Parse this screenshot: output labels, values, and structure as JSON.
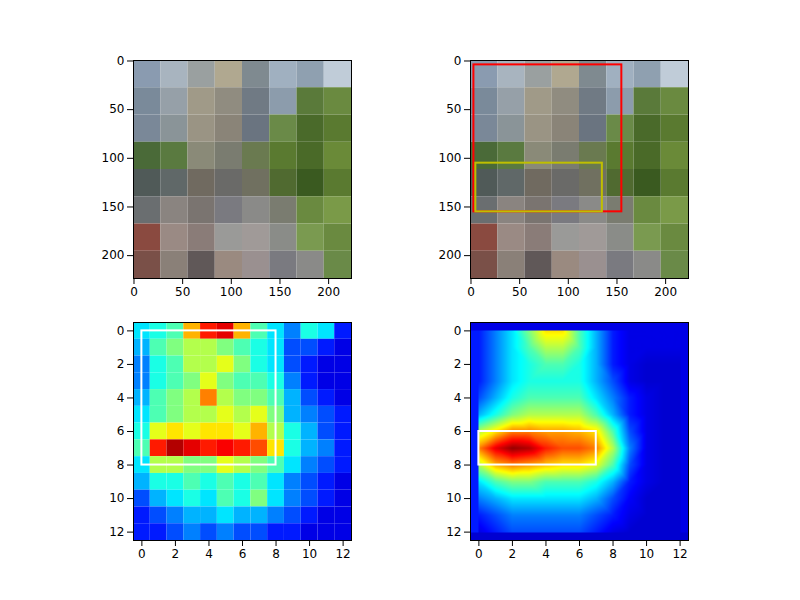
{
  "chart_data": [
    {
      "type": "image",
      "xlim": [
        -0.5,
        223.5
      ],
      "ylim": [
        223.5,
        -0.5
      ],
      "xticks": [
        0,
        50,
        100,
        150,
        200
      ],
      "yticks": [
        0,
        50,
        100,
        150,
        200
      ],
      "cells": [
        [
          "#8a9bb0",
          "#a8b4bf",
          "#9aa0a0",
          "#b0a890",
          "#7f8a90",
          "#a0b0c0",
          "#8fa0b0",
          "#c0ccd8"
        ],
        [
          "#7a8a9a",
          "#96a0a8",
          "#a09a88",
          "#908c80",
          "#707a84",
          "#8c9cac",
          "#5a7a3a",
          "#6a8a40"
        ],
        [
          "#7a8898",
          "#8a9498",
          "#9a9484",
          "#8a8478",
          "#6a7480",
          "#6a8a48",
          "#4a6a2a",
          "#5a7a30"
        ],
        [
          "#4a6a38",
          "#5a7a40",
          "#8a8a78",
          "#7a7c70",
          "#6a7a50",
          "#5a7a30",
          "#4a6a28",
          "#6a8a38"
        ],
        [
          "#505a58",
          "#606868",
          "#706a60",
          "#6a6a68",
          "#707060",
          "#506a30",
          "#3a5a20",
          "#5a7a30"
        ],
        [
          "#6a6e70",
          "#8a8480",
          "#7a7470",
          "#7a7a80",
          "#8a8a88",
          "#7a7c70",
          "#6a8a40",
          "#7a9a48"
        ],
        [
          "#8a4a40",
          "#9a8a84",
          "#8a7c78",
          "#9a9a98",
          "#a09a98",
          "#8a8c88",
          "#7a9a50",
          "#6a8a40"
        ],
        [
          "#7a5048",
          "#8a8078",
          "#605858",
          "#9a8a80",
          "#9a9090",
          "#7a7a80",
          "#8a8a88",
          "#6a8a48"
        ]
      ]
    },
    {
      "type": "image",
      "xlim": [
        -0.5,
        223.5
      ],
      "ylim": [
        223.5,
        -0.5
      ],
      "xticks": [
        0,
        50,
        100,
        150,
        200
      ],
      "yticks": [
        0,
        50,
        100,
        150,
        200
      ],
      "cells": [
        [
          "#8a9bb0",
          "#a8b4bf",
          "#9aa0a0",
          "#b0a890",
          "#7f8a90",
          "#a0b0c0",
          "#8fa0b0",
          "#c0ccd8"
        ],
        [
          "#7a8a9a",
          "#96a0a8",
          "#a09a88",
          "#908c80",
          "#707a84",
          "#8c9cac",
          "#5a7a3a",
          "#6a8a40"
        ],
        [
          "#7a8898",
          "#8a9498",
          "#9a9484",
          "#8a8478",
          "#6a7480",
          "#6a8a48",
          "#4a6a2a",
          "#5a7a30"
        ],
        [
          "#4a6a38",
          "#5a7a40",
          "#8a8a78",
          "#7a7c70",
          "#6a7a50",
          "#5a7a30",
          "#4a6a28",
          "#6a8a38"
        ],
        [
          "#505a58",
          "#606868",
          "#706a60",
          "#6a6a68",
          "#707060",
          "#506a30",
          "#3a5a20",
          "#5a7a30"
        ],
        [
          "#6a6e70",
          "#8a8480",
          "#7a7470",
          "#7a7a80",
          "#8a8a88",
          "#7a7c70",
          "#6a8a40",
          "#7a9a48"
        ],
        [
          "#8a4a40",
          "#9a8a84",
          "#8a7c78",
          "#9a9a98",
          "#a09a98",
          "#8a8c88",
          "#7a9a50",
          "#6a8a40"
        ],
        [
          "#7a5048",
          "#8a8078",
          "#605858",
          "#9a8a80",
          "#9a9090",
          "#7a7a80",
          "#8a8a88",
          "#6a8a48"
        ]
      ],
      "boxes": [
        {
          "x0": 3,
          "y0": 4,
          "x1": 155,
          "y1": 155,
          "color": "#ff0000"
        },
        {
          "x0": 5,
          "y0": 105,
          "x1": 135,
          "y1": 155,
          "color": "#bfbf00"
        }
      ]
    },
    {
      "type": "heatmap",
      "xlim": [
        -0.5,
        12.5
      ],
      "ylim": [
        12.5,
        -0.5
      ],
      "xticks": [
        0,
        2,
        4,
        6,
        8,
        10,
        12
      ],
      "yticks": [
        0,
        2,
        4,
        6,
        8,
        10,
        12
      ],
      "clim": [
        0,
        1
      ],
      "cells": [
        [
          0.35,
          0.4,
          0.45,
          0.7,
          0.85,
          0.9,
          0.7,
          0.45,
          0.35,
          0.25,
          0.4,
          0.35,
          0.15
        ],
        [
          0.3,
          0.45,
          0.5,
          0.55,
          0.55,
          0.5,
          0.45,
          0.4,
          0.35,
          0.2,
          0.2,
          0.15,
          0.1
        ],
        [
          0.25,
          0.4,
          0.45,
          0.55,
          0.55,
          0.6,
          0.5,
          0.4,
          0.35,
          0.2,
          0.15,
          0.1,
          0.1
        ],
        [
          0.25,
          0.4,
          0.45,
          0.5,
          0.6,
          0.5,
          0.45,
          0.45,
          0.4,
          0.25,
          0.15,
          0.1,
          0.1
        ],
        [
          0.3,
          0.45,
          0.5,
          0.55,
          0.75,
          0.55,
          0.5,
          0.5,
          0.45,
          0.3,
          0.2,
          0.15,
          0.1
        ],
        [
          0.35,
          0.45,
          0.5,
          0.55,
          0.55,
          0.6,
          0.55,
          0.6,
          0.5,
          0.3,
          0.25,
          0.2,
          0.15
        ],
        [
          0.4,
          0.6,
          0.65,
          0.6,
          0.65,
          0.65,
          0.6,
          0.7,
          0.55,
          0.4,
          0.3,
          0.2,
          0.15
        ],
        [
          0.45,
          0.85,
          0.95,
          0.9,
          0.85,
          0.88,
          0.85,
          0.8,
          0.65,
          0.4,
          0.3,
          0.25,
          0.15
        ],
        [
          0.35,
          0.55,
          0.55,
          0.5,
          0.5,
          0.6,
          0.55,
          0.5,
          0.45,
          0.35,
          0.25,
          0.2,
          0.15
        ],
        [
          0.3,
          0.4,
          0.4,
          0.45,
          0.4,
          0.45,
          0.4,
          0.45,
          0.35,
          0.25,
          0.2,
          0.15,
          0.1
        ],
        [
          0.2,
          0.3,
          0.35,
          0.4,
          0.35,
          0.45,
          0.4,
          0.5,
          0.35,
          0.25,
          0.2,
          0.15,
          0.1
        ],
        [
          0.15,
          0.2,
          0.25,
          0.3,
          0.3,
          0.35,
          0.3,
          0.3,
          0.25,
          0.2,
          0.15,
          0.1,
          0.1
        ],
        [
          0.15,
          0.15,
          0.2,
          0.25,
          0.2,
          0.25,
          0.2,
          0.2,
          0.15,
          0.15,
          0.1,
          0.1,
          0.1
        ]
      ],
      "boxes": [
        {
          "x0": 0,
          "y0": 0,
          "x1": 8,
          "y1": 8,
          "color": "#ffffff"
        }
      ]
    },
    {
      "type": "heatmap",
      "xlim": [
        -0.5,
        12.5
      ],
      "ylim": [
        12.5,
        -0.5
      ],
      "xticks": [
        0,
        2,
        4,
        6,
        8,
        10,
        12
      ],
      "yticks": [
        0,
        2,
        4,
        6,
        8,
        10,
        12
      ],
      "clim": [
        0,
        1
      ],
      "cells": [
        [
          0.15,
          0.25,
          0.35,
          0.5,
          0.65,
          0.65,
          0.45,
          0.3,
          0.15,
          0.1,
          0.1,
          0.1,
          0.1
        ],
        [
          0.15,
          0.25,
          0.35,
          0.45,
          0.55,
          0.55,
          0.45,
          0.3,
          0.15,
          0.1,
          0.1,
          0.1,
          0.1
        ],
        [
          0.15,
          0.25,
          0.35,
          0.4,
          0.45,
          0.45,
          0.4,
          0.3,
          0.15,
          0.1,
          0.08,
          0.08,
          0.08
        ],
        [
          0.15,
          0.25,
          0.35,
          0.4,
          0.4,
          0.4,
          0.4,
          0.3,
          0.2,
          0.1,
          0.08,
          0.08,
          0.08
        ],
        [
          0.2,
          0.3,
          0.4,
          0.45,
          0.45,
          0.45,
          0.45,
          0.35,
          0.25,
          0.15,
          0.1,
          0.08,
          0.08
        ],
        [
          0.3,
          0.4,
          0.5,
          0.55,
          0.55,
          0.55,
          0.55,
          0.45,
          0.3,
          0.15,
          0.1,
          0.08,
          0.08
        ],
        [
          0.55,
          0.65,
          0.75,
          0.75,
          0.72,
          0.72,
          0.7,
          0.65,
          0.45,
          0.2,
          0.1,
          0.08,
          0.08
        ],
        [
          0.75,
          0.9,
          0.98,
          0.95,
          0.85,
          0.8,
          0.8,
          0.75,
          0.55,
          0.25,
          0.1,
          0.08,
          0.08
        ],
        [
          0.55,
          0.7,
          0.75,
          0.72,
          0.68,
          0.65,
          0.65,
          0.6,
          0.45,
          0.2,
          0.1,
          0.08,
          0.08
        ],
        [
          0.35,
          0.45,
          0.5,
          0.5,
          0.45,
          0.45,
          0.45,
          0.4,
          0.3,
          0.15,
          0.1,
          0.08,
          0.08
        ],
        [
          0.25,
          0.3,
          0.35,
          0.35,
          0.35,
          0.35,
          0.35,
          0.3,
          0.2,
          0.12,
          0.08,
          0.08,
          0.08
        ],
        [
          0.15,
          0.2,
          0.25,
          0.25,
          0.25,
          0.25,
          0.25,
          0.2,
          0.15,
          0.1,
          0.08,
          0.08,
          0.08
        ],
        [
          0.1,
          0.15,
          0.2,
          0.2,
          0.2,
          0.2,
          0.2,
          0.15,
          0.1,
          0.08,
          0.08,
          0.08,
          0.08
        ]
      ],
      "boxes": [
        {
          "x0": 0,
          "y0": 6,
          "x1": 7,
          "y1": 8,
          "color": "#ffffff"
        }
      ]
    }
  ]
}
